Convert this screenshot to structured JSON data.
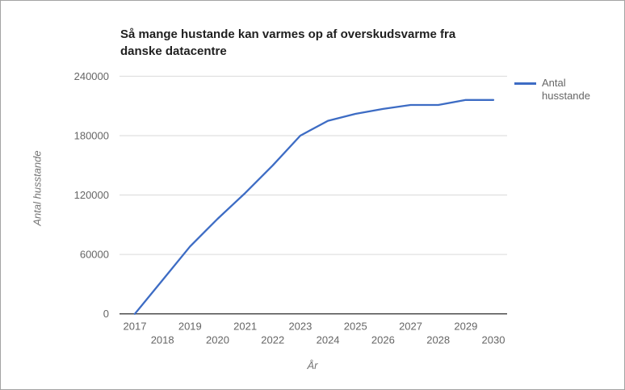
{
  "frame": {
    "background": "#ffffff",
    "border_color": "#a3a3a3"
  },
  "chart": {
    "title_lines": [
      "Så mange hustande kan varmes op af overskudsvarme fra",
      "danske datacentre"
    ],
    "legend": {
      "label_lines": [
        "Antal",
        "husstande"
      ]
    }
  },
  "chart_data": {
    "type": "line",
    "title": "Så mange hustande kan varmes op af overskudsvarme fra danske datacentre",
    "xlabel": "År",
    "ylabel": "Antal husstande",
    "legend": {
      "entries": [
        "Antal husstande"
      ],
      "position": "right"
    },
    "grid": true,
    "x": [
      2017,
      2018,
      2019,
      2020,
      2021,
      2022,
      2023,
      2024,
      2025,
      2026,
      2027,
      2028,
      2029,
      2030
    ],
    "series": [
      {
        "name": "Antal husstande",
        "color": "#3d6cc4",
        "values": [
          0,
          34000,
          68000,
          96000,
          122000,
          150000,
          180000,
          195000,
          202000,
          207000,
          211000,
          211000,
          216000,
          216000
        ]
      }
    ],
    "ylim": [
      0,
      240000
    ],
    "y_ticks": [
      0,
      60000,
      120000,
      180000,
      240000
    ],
    "x_tick_style": "staggered",
    "axis_color": "#3f3f3f",
    "gridline_color": "#dadada",
    "label_color": "#666666"
  }
}
